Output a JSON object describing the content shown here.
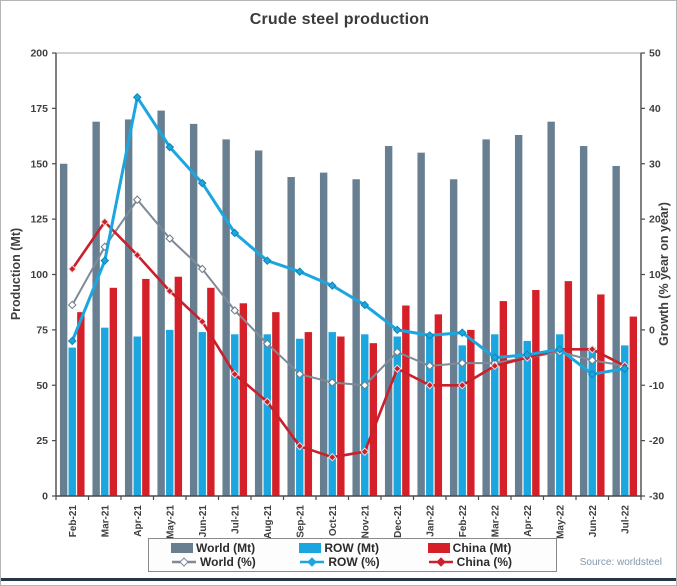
{
  "title": "Crude steel production",
  "source_note": "Source: worldsteel",
  "colors": {
    "world_bar": "#687f92",
    "row_bar": "#1ca6df",
    "china_bar": "#d52029",
    "world_line": "#7e8b97",
    "row_line": "#1ca6df",
    "china_line": "#c9202b",
    "axis_text": "#3f3f3f",
    "title_text": "#3a3a3a",
    "source_text": "#8198ab",
    "bottom_rule": "#26374a"
  },
  "legend": {
    "rows": [
      [
        {
          "label": "World (Mt)",
          "swatch": "bar",
          "color": "#687f92"
        },
        {
          "label": "ROW (Mt)",
          "swatch": "bar",
          "color": "#1ca6df"
        },
        {
          "label": "China (Mt)",
          "swatch": "bar",
          "color": "#d52029"
        }
      ],
      [
        {
          "label": "World (%)",
          "swatch": "line",
          "color": "#7e8b97",
          "marker_fill": "#ffffff"
        },
        {
          "label": "ROW (%)",
          "swatch": "line",
          "color": "#1ca6df",
          "marker_fill": "#1ca6df"
        },
        {
          "label": "China (%)",
          "swatch": "line",
          "color": "#c9202b",
          "marker_fill": "#c9202b"
        }
      ]
    ]
  },
  "chart_data": {
    "type": "combo-bar-line",
    "title": "Crude steel production",
    "categories": [
      "Feb-21",
      "Mar-21",
      "Apr-21",
      "May-21",
      "Jun-21",
      "Jul-21",
      "Aug-21",
      "Sep-21",
      "Oct-21",
      "Nov-21",
      "Dec-21",
      "Jan-22",
      "Feb-22",
      "Mar-22",
      "Apr-22",
      "May-22",
      "Jun-22",
      "Jul-22"
    ],
    "left_axis": {
      "label": "Production (Mt)",
      "min": 0,
      "max": 200,
      "step": 25
    },
    "right_axis": {
      "label": "Growth (% year on year)",
      "min": -30,
      "max": 50,
      "step": 10
    },
    "bar_series": [
      {
        "name": "World (Mt)",
        "axis": "left",
        "color": "#687f92",
        "values": [
          150,
          169,
          170,
          174,
          168,
          161,
          156,
          144,
          146,
          143,
          158,
          155,
          143,
          161,
          163,
          169,
          158,
          149
        ]
      },
      {
        "name": "ROW (Mt)",
        "axis": "left",
        "color": "#1ca6df",
        "values": [
          67,
          76,
          72,
          75,
          74,
          73,
          73,
          71,
          74,
          73,
          72,
          73,
          68,
          73,
          70,
          73,
          67,
          68
        ]
      },
      {
        "name": "China (Mt)",
        "axis": "left",
        "color": "#d52029",
        "values": [
          83,
          94,
          98,
          99,
          94,
          87,
          83,
          74,
          72,
          69,
          86,
          82,
          75,
          88,
          93,
          97,
          91,
          81
        ]
      }
    ],
    "line_series": [
      {
        "name": "World (%)",
        "axis": "right",
        "color": "#7e8b97",
        "marker_fill": "#ffffff",
        "marker_stroke": "#6d7b87",
        "width": 2,
        "values": [
          4.5,
          15,
          23.5,
          16.5,
          11,
          3.5,
          -2.5,
          -8,
          -9.5,
          -10,
          -4,
          -6.5,
          -6,
          -6,
          -5,
          -4,
          -5.5,
          -6.5
        ]
      },
      {
        "name": "China (%)",
        "axis": "right",
        "color": "#c9202b",
        "marker_fill": "#c9202b",
        "marker_stroke": "#f2d7d7",
        "width": 2.6,
        "values": [
          11,
          19.5,
          13.5,
          7,
          1.5,
          -8,
          -13,
          -21,
          -23,
          -22,
          -7,
          -10,
          -10,
          -6.5,
          -5,
          -3.5,
          -3.5,
          -6.5
        ]
      },
      {
        "name": "ROW (%)",
        "axis": "right",
        "color": "#1ca6df",
        "marker_fill": "#1ca6df",
        "marker_stroke": "#0f85b8",
        "width": 3,
        "values": [
          -2,
          12.5,
          42,
          33,
          26.5,
          17.5,
          12.5,
          10.5,
          8,
          4.5,
          0,
          -1,
          -0.5,
          -5,
          -4.5,
          -3.5,
          -8,
          -7
        ]
      }
    ],
    "legend_position": "bottom",
    "grid": "top-border-only",
    "source": "Source: worldsteel"
  }
}
